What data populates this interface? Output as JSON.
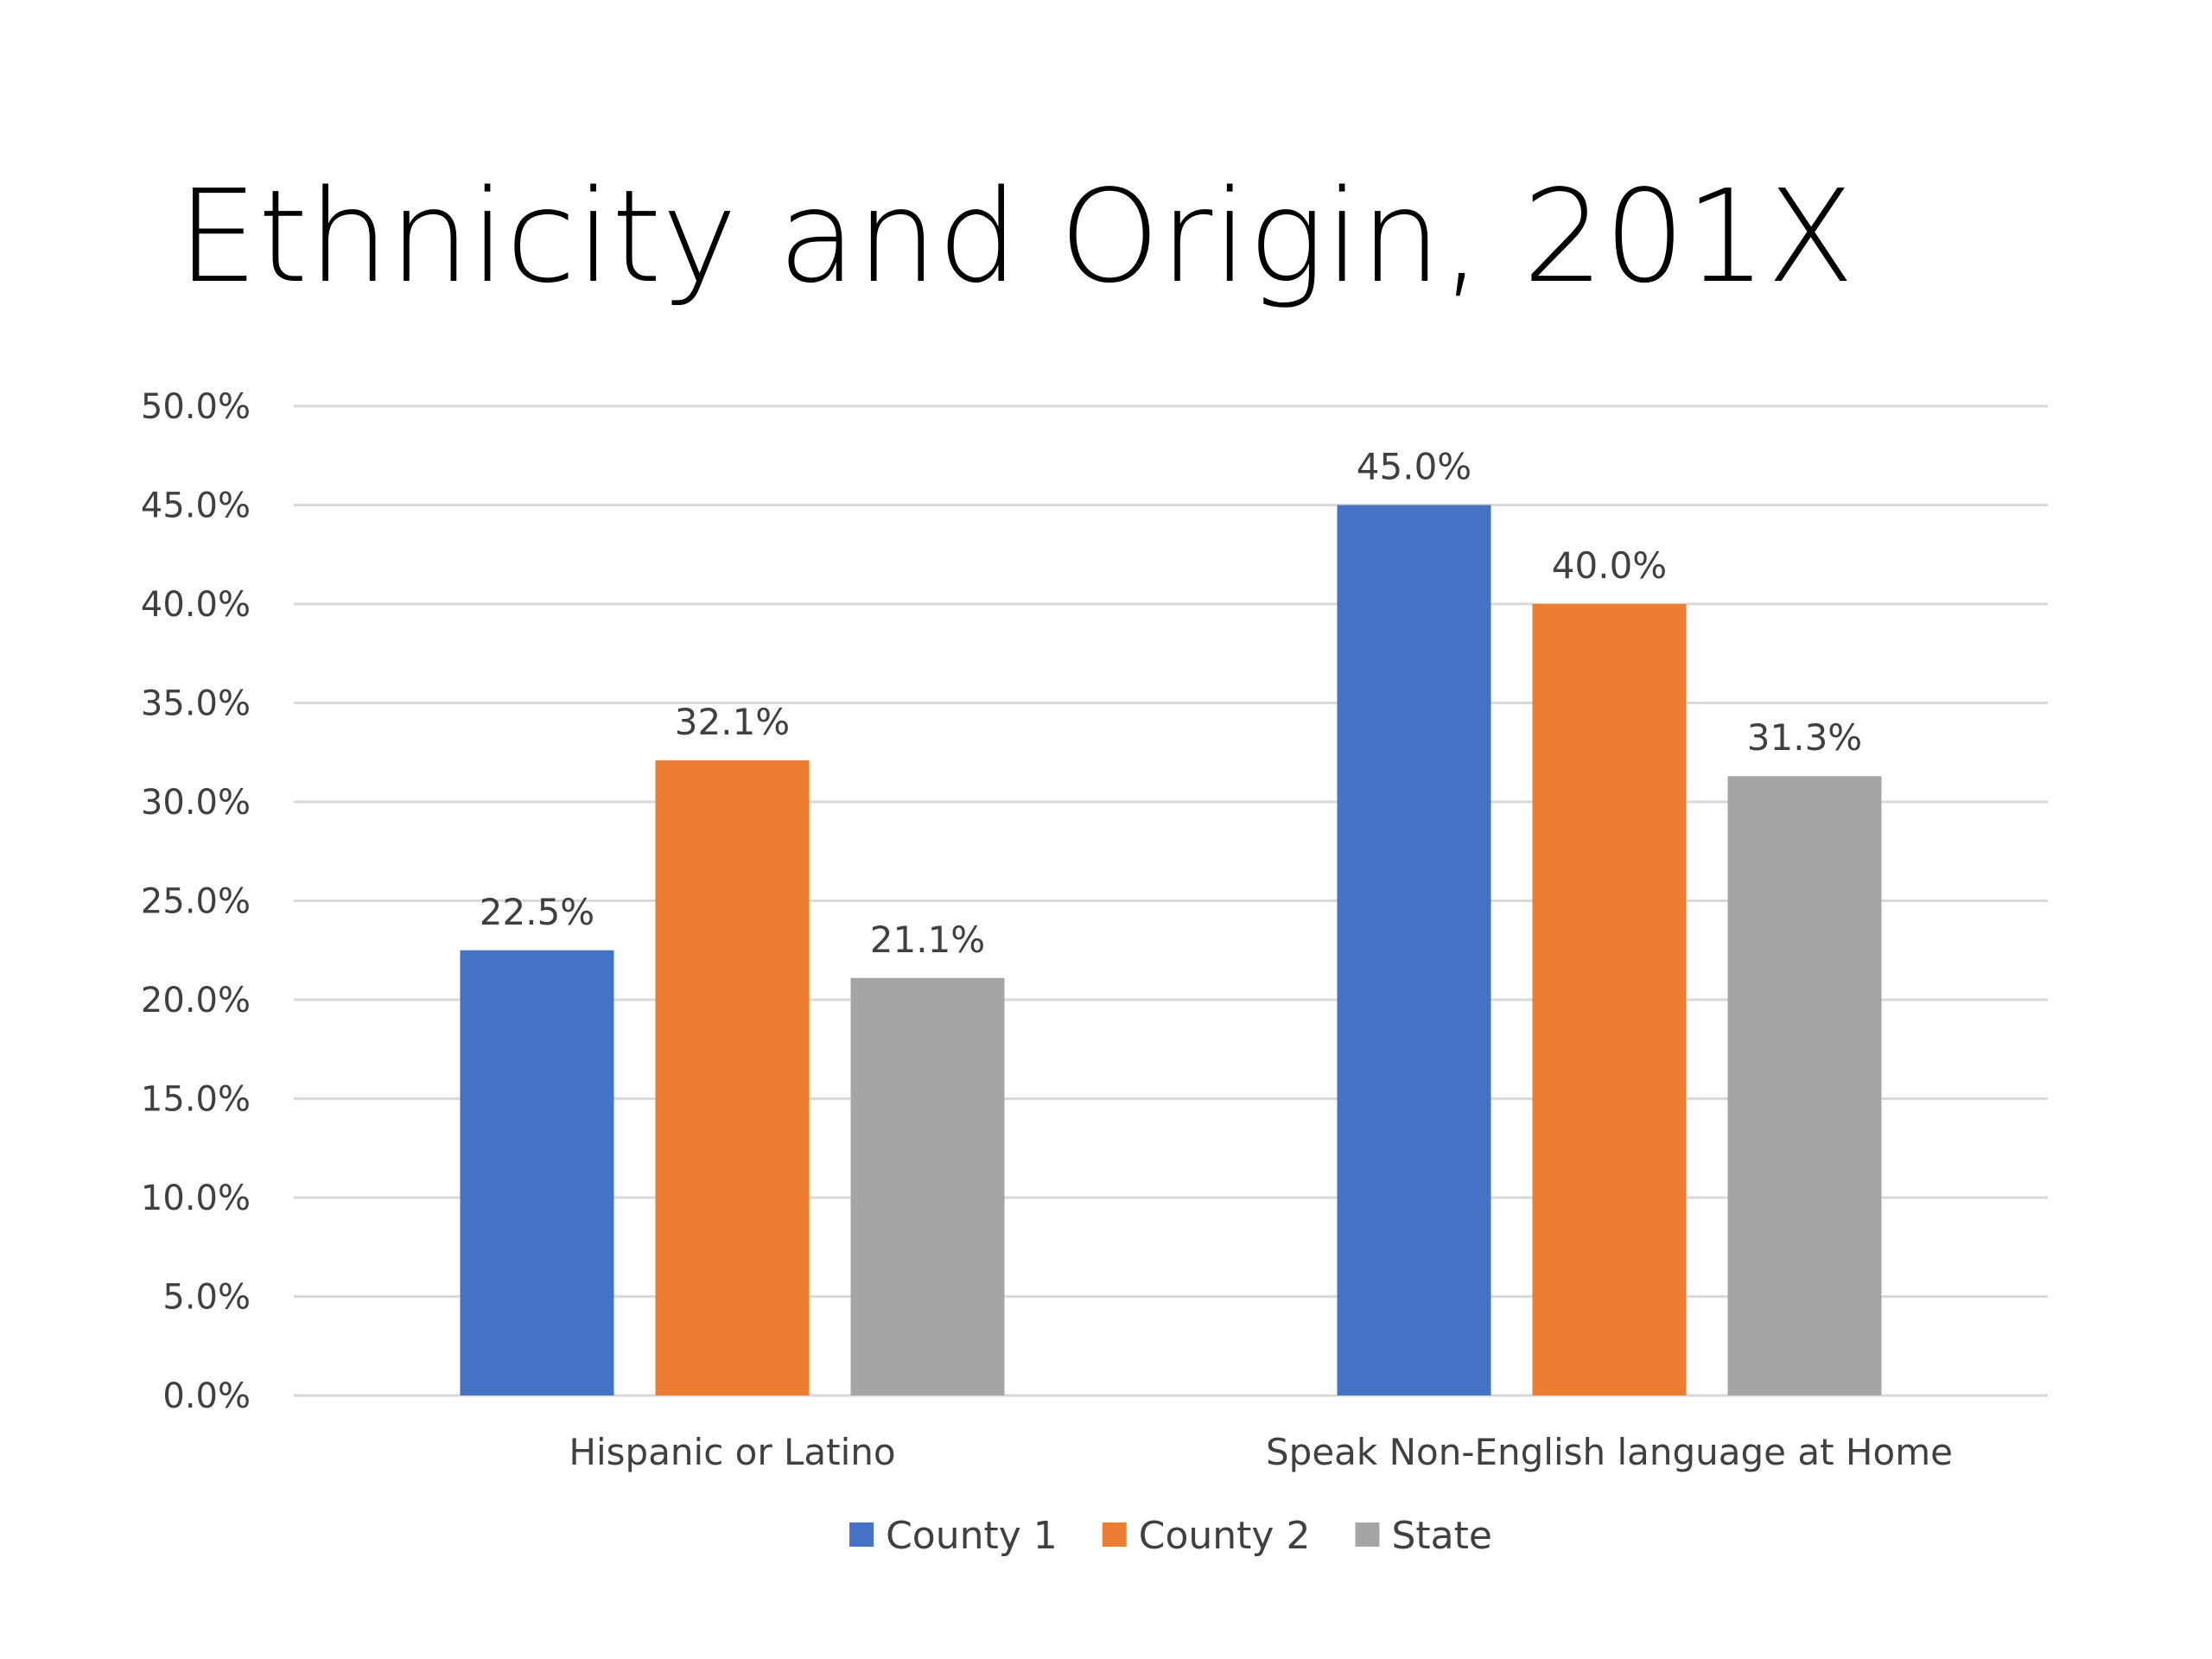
{
  "chart_data": {
    "type": "bar",
    "title": "Ethnicity and Origin, 201X",
    "categories": [
      "Hispanic or Latino",
      "Speak Non-English language at Home"
    ],
    "series": [
      {
        "name": "County 1",
        "values": [
          22.5,
          45.0
        ],
        "labels": [
          "22.5%",
          "45.0%"
        ],
        "color": "#4472C4"
      },
      {
        "name": "County 2",
        "values": [
          32.1,
          40.0
        ],
        "labels": [
          "32.1%",
          "40.0%"
        ],
        "color": "#ED7D31"
      },
      {
        "name": "State",
        "values": [
          21.1,
          31.3
        ],
        "labels": [
          "21.1%",
          "31.3%"
        ],
        "color": "#A5A5A5"
      }
    ],
    "ylim": [
      0,
      50
    ],
    "yticks": [
      0,
      5,
      10,
      15,
      20,
      25,
      30,
      35,
      40,
      45,
      50
    ],
    "ytick_labels": [
      "0.0%",
      "5.0%",
      "10.0%",
      "15.0%",
      "20.0%",
      "25.0%",
      "30.0%",
      "35.0%",
      "40.0%",
      "45.0%",
      "50.0%"
    ],
    "grid": true,
    "gridline_color": "#D9D9D9",
    "legend_position": "bottom",
    "xlabel": "",
    "ylabel": ""
  }
}
